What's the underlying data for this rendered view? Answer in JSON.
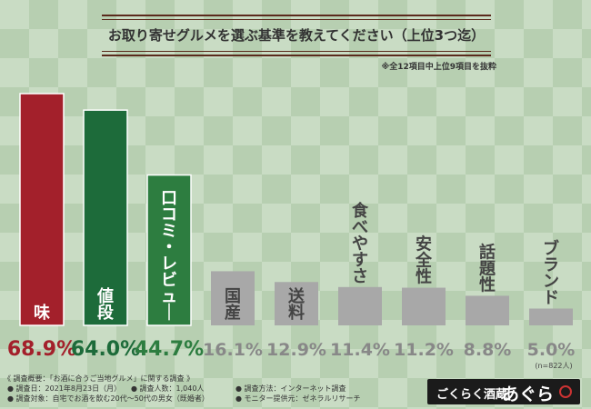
{
  "title": "お取り寄せグルメを選ぶ基準を教えてください（上位3つ迄）",
  "note": "※全12項目中上位9項目を抜粋",
  "chart_data": {
    "type": "bar",
    "categories": [
      "味",
      "値段",
      "口コミ・レビュー",
      "国産",
      "送料",
      "食べやすさ",
      "安全性",
      "話題性",
      "ブランド"
    ],
    "values": [
      68.9,
      64.0,
      44.7,
      16.1,
      12.9,
      11.4,
      11.2,
      8.8,
      5.0
    ],
    "value_labels": [
      "68.9%",
      "64.0%",
      "44.7%",
      "16.1%",
      "12.9%",
      "11.4%",
      "11.2%",
      "8.8%",
      "5.0%"
    ],
    "ylim": [
      0,
      70
    ],
    "colors": {
      "top1": "#a3202b",
      "top2": "#1d6b3a",
      "top3": "#2d7d40",
      "rest": "#a8a8a8",
      "rest_text": "#888888",
      "label_text": "#444444"
    },
    "sample_note": "(n=822人)"
  },
  "footer": {
    "line1": "《 調査概要：「お酒に合うご当地グルメ」に関する調査 》",
    "line2a": "● 調査日：2021年8月23日（月）",
    "line2b": "● 調査人数：1,040人",
    "line2c": "● 調査方法：インターネット調査",
    "line3a": "● 調査対象：自宅でお酒を飲む20代～50代の男女（既婚者）",
    "line3b": "● モニター提供元：ゼネラルリサーチ"
  },
  "brand": {
    "sub": "ごくらく酒蔵",
    "main": "あぐら"
  }
}
